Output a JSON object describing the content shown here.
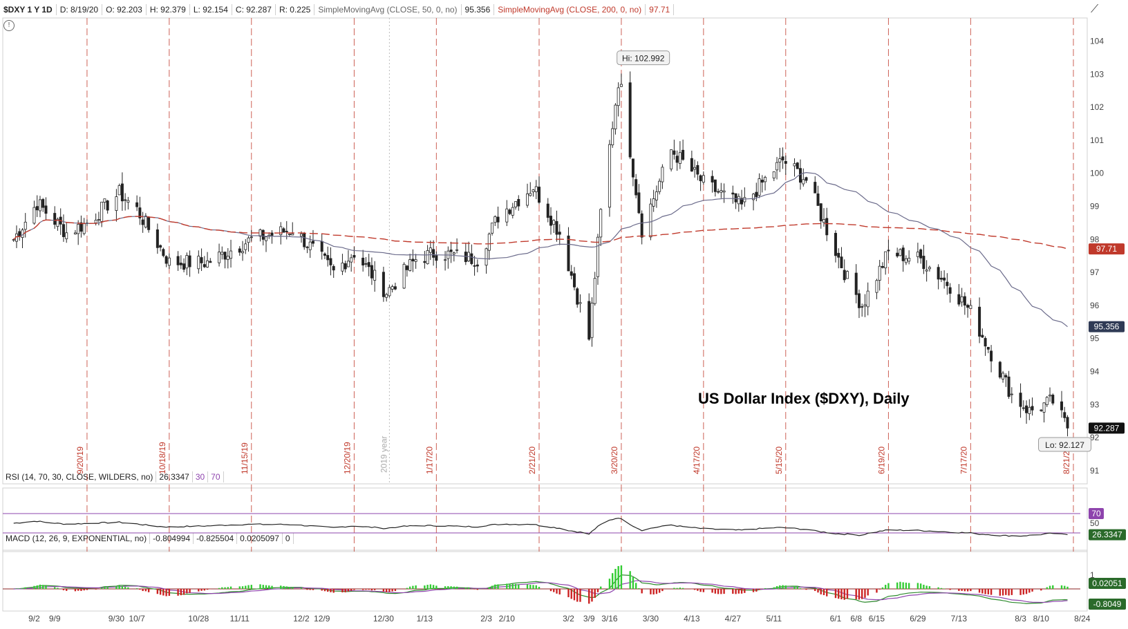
{
  "header": {
    "symbol": "$DXY 1 Y 1D",
    "date": "D: 8/19/20",
    "open": "O: 92.203",
    "high": "H: 92.379",
    "low": "L: 92.154",
    "close": "C: 92.287",
    "range": "R: 0.225",
    "sma50_label": "SimpleMovingAvg (CLOSE, 50, 0, no)",
    "sma50_value": "95.356",
    "sma200_label": "SimpleMovingAvg (CLOSE, 200, 0, no)",
    "sma200_value": "97.71"
  },
  "rsi_header": {
    "label": "RSI (14, 70, 30, CLOSE, WILDERS, no)",
    "value": "26.3347",
    "low": "30",
    "high": "70"
  },
  "macd_header": {
    "label": "MACD (12, 26, 9, EXPONENTIAL, no)",
    "value": "-0.804994",
    "avg": "-0.825504",
    "diff": "0.0205097",
    "zero": "0"
  },
  "colors": {
    "candle": "#222222",
    "sma50": "#6a6a8a",
    "sma200": "#c0392b",
    "rsi_line": "#222222",
    "rsi_bounds": "#8e44ad",
    "macd_line": "#2c8a2c",
    "macd_avg": "#8e44ad",
    "macd_pos": "#33cc33",
    "macd_neg": "#cc2222",
    "friday_line": "#c0392b"
  },
  "chart_data": [
    {
      "type": "candlestick",
      "title": "US Dollar Index ($DXY), Daily",
      "ylim": [
        90.6,
        104.7
      ],
      "y_ticks": [
        91,
        92,
        93,
        94,
        95,
        96,
        97,
        98,
        99,
        100,
        101,
        102,
        103,
        104
      ],
      "x_tick_labels": [
        "9/2",
        "9/9",
        "9/30",
        "10/7",
        "10/28",
        "11/11",
        "12/2",
        "12/9",
        "12/30",
        "1/13",
        "2/3",
        "2/10",
        "3/2",
        "3/9",
        "3/16",
        "3/30",
        "4/13",
        "4/27",
        "5/11",
        "6/1",
        "6/8",
        "6/15",
        "6/29",
        "7/13",
        "8/3",
        "8/10",
        "8/24"
      ],
      "event_lines": [
        "9/20/19",
        "10/18/19",
        "11/15/19",
        "12/20/19",
        "1/17/20",
        "2/21/20",
        "3/20/20",
        "4/17/20",
        "5/15/20",
        "6/19/20",
        "7/17/20",
        "8/21/20"
      ],
      "year_marker": "2019 year",
      "key_points": [
        [
          "8/26/19",
          98.0
        ],
        [
          "9/3/19",
          99.1
        ],
        [
          "9/13/19",
          98.2
        ],
        [
          "9/20/19",
          98.5
        ],
        [
          "10/1/19",
          99.4
        ],
        [
          "10/7/19",
          98.9
        ],
        [
          "10/18/19",
          97.3
        ],
        [
          "10/31/19",
          97.3
        ],
        [
          "11/15/19",
          98.0
        ],
        [
          "11/29/19",
          98.3
        ],
        [
          "12/6/19",
          97.7
        ],
        [
          "12/13/19",
          97.0
        ],
        [
          "12/20/19",
          97.6
        ],
        [
          "12/31/19",
          96.4
        ],
        [
          "1/10/20",
          97.4
        ],
        [
          "1/17/20",
          97.6
        ],
        [
          "1/31/20",
          97.4
        ],
        [
          "2/7/20",
          98.7
        ],
        [
          "2/19/20",
          99.6
        ],
        [
          "2/21/20",
          99.3
        ],
        [
          "2/28/20",
          98.2
        ],
        [
          "3/9/20",
          95.0
        ],
        [
          "3/13/20",
          98.8
        ],
        [
          "3/19/20",
          102.8
        ],
        [
          "3/20/20",
          102.5
        ],
        [
          "3/27/20",
          98.3
        ],
        [
          "4/6/20",
          100.7
        ],
        [
          "4/17/20",
          99.7
        ],
        [
          "4/30/20",
          99.0
        ],
        [
          "5/14/20",
          100.4
        ],
        [
          "5/22/20",
          99.8
        ],
        [
          "5/29/20",
          98.3
        ],
        [
          "6/5/20",
          96.8
        ],
        [
          "6/10/20",
          96.0
        ],
        [
          "6/19/20",
          97.6
        ],
        [
          "6/30/20",
          97.4
        ],
        [
          "7/10/20",
          96.6
        ],
        [
          "7/17/20",
          95.8
        ],
        [
          "7/31/20",
          93.3
        ],
        [
          "8/6/20",
          92.8
        ],
        [
          "8/14/20",
          93.1
        ],
        [
          "8/19/20",
          92.287
        ]
      ],
      "annotations": [
        {
          "text": "Hi: 102.992",
          "value": 102.992
        },
        {
          "text": "Lo: 92.127",
          "value": 92.127
        }
      ],
      "series": [
        {
          "name": "SimpleMovingAvg (CLOSE, 50, 0, no)",
          "last": 95.356
        },
        {
          "name": "SimpleMovingAvg (CLOSE, 200, 0, no)",
          "last": 97.71
        }
      ],
      "last_close": 92.287
    },
    {
      "type": "line",
      "title": "RSI (14, 70, 30, CLOSE, WILDERS, no)",
      "ylim": [
        0,
        100
      ],
      "y_ticks": [
        50,
        70
      ],
      "bounds": [
        30,
        70
      ],
      "last": 26.3347
    },
    {
      "type": "line",
      "title": "MACD (12, 26, 9, EXPONENTIAL, no)",
      "y_ticks": [
        1
      ],
      "last_value": 0.0205097,
      "last_diff_label": "0.02051",
      "last_avg_label": "-0.8049"
    }
  ]
}
